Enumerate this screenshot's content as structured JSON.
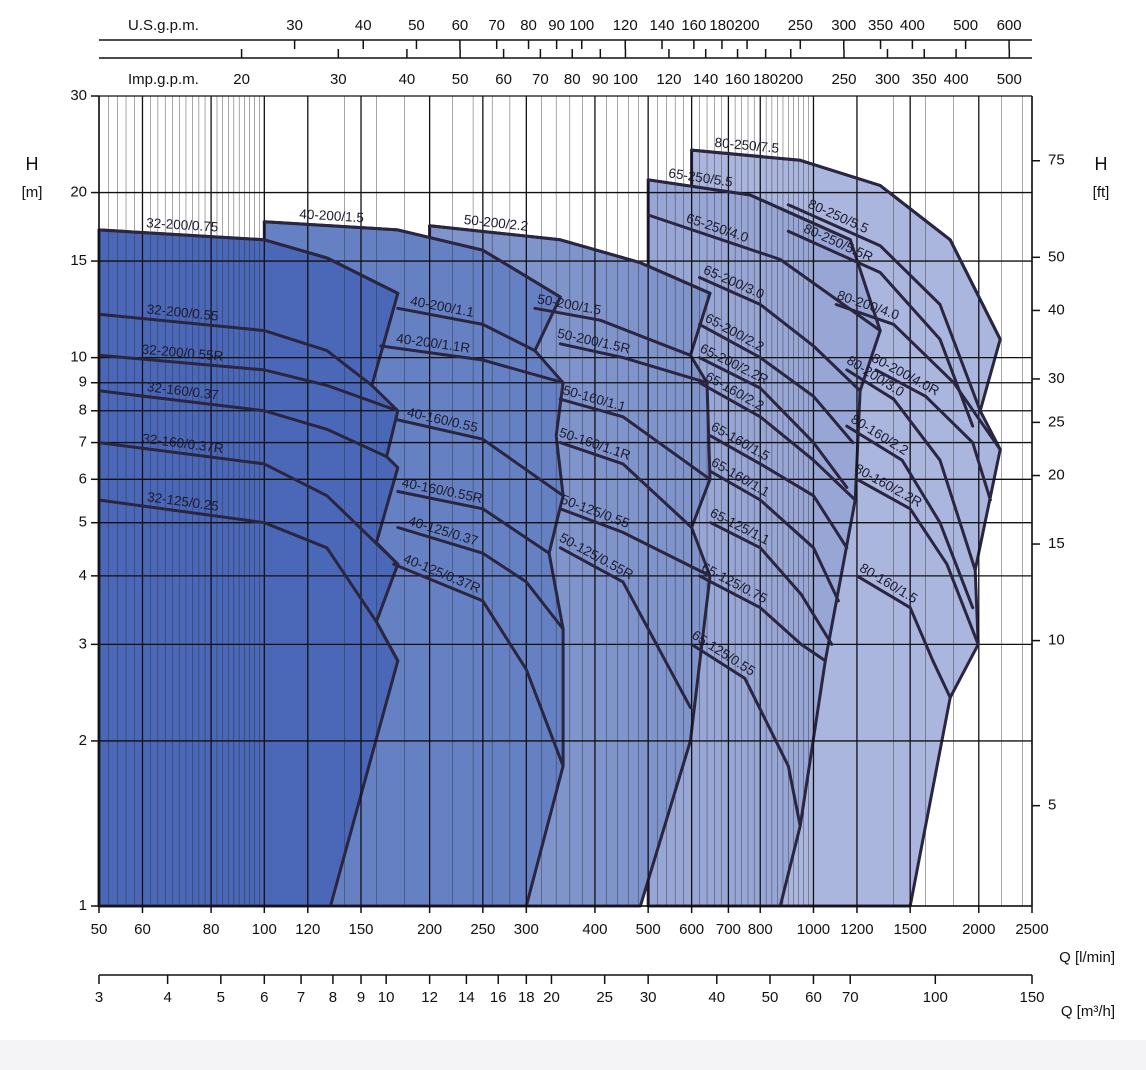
{
  "chart_data": {
    "type": "line",
    "log_x": true,
    "log_y": true,
    "grid": true,
    "minor_grid": true,
    "xlabel": "Q [l/min]",
    "ylabel": {
      "symbol": "H",
      "unit": "[m]"
    },
    "y2label": {
      "symbol": "H",
      "unit": "[ft]"
    },
    "xlim": [
      50,
      2500
    ],
    "xticks": [
      50,
      60,
      80,
      100,
      120,
      150,
      200,
      250,
      300,
      400,
      500,
      600,
      700,
      800,
      1000,
      1200,
      1500,
      2000,
      2500
    ],
    "ylim": [
      1,
      30
    ],
    "yticks": [
      1,
      2,
      3,
      4,
      5,
      6,
      7,
      8,
      9,
      10,
      15,
      20,
      30
    ],
    "y2lim": [
      3.281,
      98.43
    ],
    "y2ticks": [
      5,
      10,
      15,
      20,
      25,
      30,
      40,
      50,
      75
    ],
    "us_gpm": {
      "label": "U.S.g.p.m.",
      "lim": [
        13.21,
        660.5
      ],
      "ticks": [
        30,
        40,
        50,
        60,
        70,
        80,
        90,
        100,
        120,
        140,
        160,
        180,
        200,
        250,
        300,
        350,
        400,
        500,
        600
      ]
    },
    "imp_gpm": {
      "label": "Imp.g.p.m.",
      "lim": [
        11.0,
        549.9
      ],
      "ticks": [
        20,
        30,
        40,
        50,
        60,
        70,
        80,
        90,
        100,
        120,
        140,
        160,
        180,
        200,
        250,
        300,
        350,
        400,
        500
      ]
    },
    "m3h": {
      "label": "Q [m³/h]",
      "lim": [
        3,
        150
      ],
      "ticks": [
        3,
        4,
        5,
        6,
        7,
        8,
        9,
        10,
        12,
        14,
        16,
        18,
        20,
        25,
        30,
        40,
        50,
        60,
        70,
        100,
        150
      ]
    },
    "curve_color": "#2a2540",
    "regions": [
      {
        "color": "#4b68b8",
        "x": [
          50,
          50,
          100,
          130,
          175,
          157,
          175,
          167,
          175,
          160,
          175,
          160,
          175,
          132
        ],
        "values": [
          1,
          17.1,
          16.4,
          15.2,
          13.1,
          8.9,
          8.0,
          6.6,
          6.3,
          4.6,
          4.2,
          3.3,
          2.8,
          1
        ]
      },
      {
        "color": "#6681c3",
        "x": [
          100,
          100,
          175,
          250,
          346,
          311,
          350,
          340,
          350,
          330,
          350,
          350,
          300
        ],
        "values": [
          1,
          17.7,
          17.1,
          15.7,
          12.9,
          10.3,
          9.0,
          7.2,
          5.6,
          4.4,
          3.2,
          1.8,
          1
        ]
      },
      {
        "color": "#8094cc",
        "x": [
          200,
          200,
          346,
          484,
          648,
          597,
          640,
          648,
          600,
          648,
          597,
          484
        ],
        "values": [
          1,
          17.4,
          16.4,
          14.9,
          13.1,
          10.1,
          9.0,
          6.0,
          4.9,
          4.0,
          2.0,
          1
        ]
      },
      {
        "color": "#98a6d5",
        "x": [
          500,
          500,
          767,
          1167,
          1323,
          1216,
          1191,
          1051,
          946,
          870
        ],
        "values": [
          1,
          21.1,
          19.8,
          16.4,
          11.2,
          8.7,
          5.5,
          2.8,
          1.4,
          1
        ]
      },
      {
        "color": "#abb6de",
        "x": [
          600,
          600,
          946,
          1323,
          1774,
          2188,
          2012,
          2188,
          1970,
          1995,
          1774,
          1500
        ],
        "values": [
          1,
          23.9,
          22.9,
          20.6,
          16.4,
          10.8,
          8.0,
          6.8,
          4.1,
          3.0,
          2.4,
          1
        ]
      }
    ],
    "series": [
      {
        "name": "32-200/0.75",
        "x": [
          50,
          100,
          130,
          175
        ],
        "values": [
          17.1,
          16.4,
          15.2,
          13.1
        ]
      },
      {
        "name": "32-200/0.55",
        "x": [
          50,
          100,
          130,
          157
        ],
        "values": [
          12.0,
          11.2,
          10.3,
          8.9
        ]
      },
      {
        "name": "32-200/0.55R",
        "x": [
          50,
          100,
          130,
          175
        ],
        "values": [
          10.1,
          9.5,
          8.9,
          8.0
        ]
      },
      {
        "name": "32-160/0.37",
        "x": [
          50,
          100,
          130,
          167
        ],
        "values": [
          8.7,
          8.0,
          7.4,
          6.6
        ]
      },
      {
        "name": "32-160/0.37R",
        "x": [
          50,
          100,
          130,
          175
        ],
        "values": [
          7.0,
          6.4,
          5.6,
          4.2
        ]
      },
      {
        "name": "32-125/0.25",
        "x": [
          50,
          100,
          130,
          160,
          175
        ],
        "values": [
          5.5,
          5.0,
          4.5,
          3.3,
          2.8
        ]
      },
      {
        "name": "40-200/1.5",
        "x": [
          100,
          175,
          250,
          346
        ],
        "values": [
          17.7,
          17.1,
          15.7,
          12.9
        ]
      },
      {
        "name": "40-200/1.1",
        "x": [
          175,
          250,
          311
        ],
        "values": [
          12.3,
          11.5,
          10.3
        ]
      },
      {
        "name": "40-200/1.1R",
        "x": [
          163,
          250,
          350
        ],
        "values": [
          10.5,
          9.9,
          9.0
        ]
      },
      {
        "name": "40-160/0.55",
        "x": [
          175,
          250,
          350
        ],
        "values": [
          7.7,
          7.1,
          5.6
        ]
      },
      {
        "name": "40-160/0.55R",
        "x": [
          175,
          250,
          330
        ],
        "values": [
          5.7,
          5.3,
          4.4
        ]
      },
      {
        "name": "40-125/0.37",
        "x": [
          175,
          250,
          300,
          350
        ],
        "values": [
          4.9,
          4.4,
          3.9,
          3.2
        ]
      },
      {
        "name": "40-125/0.37R",
        "x": [
          172,
          250,
          300,
          350
        ],
        "values": [
          4.2,
          3.6,
          2.7,
          1.8
        ]
      },
      {
        "name": "50-200/2.2",
        "x": [
          200,
          346,
          484,
          648
        ],
        "values": [
          17.4,
          16.4,
          14.9,
          13.1
        ]
      },
      {
        "name": "50-200/1.5",
        "x": [
          311,
          409,
          597
        ],
        "values": [
          12.3,
          11.7,
          10.1
        ]
      },
      {
        "name": "50-200/1.5R",
        "x": [
          346,
          450,
          640
        ],
        "values": [
          10.6,
          10.0,
          9.0
        ]
      },
      {
        "name": "50-160/1.1",
        "x": [
          346,
          450,
          648
        ],
        "values": [
          8.4,
          7.8,
          6.0
        ]
      },
      {
        "name": "50-160/1.1R",
        "x": [
          346,
          450,
          600
        ],
        "values": [
          7.0,
          6.4,
          4.9
        ]
      },
      {
        "name": "50-125/0.55",
        "x": [
          346,
          450,
          648
        ],
        "values": [
          5.3,
          4.8,
          4.0
        ]
      },
      {
        "name": "50-125/0.55R",
        "x": [
          346,
          450,
          597
        ],
        "values": [
          4.5,
          3.9,
          2.3
        ]
      },
      {
        "name": "65-250/5.5",
        "x": [
          500,
          767,
          1167
        ],
        "values": [
          21.1,
          19.8,
          16.4
        ]
      },
      {
        "name": "65-250/4.0",
        "x": [
          500,
          870,
          1323
        ],
        "values": [
          18.2,
          15.1,
          11.2
        ]
      },
      {
        "name": "65-200/3.0",
        "x": [
          620,
          800,
          1000,
          1216
        ],
        "values": [
          14.0,
          12.5,
          10.5,
          8.7
        ]
      },
      {
        "name": "65-200/2.2",
        "x": [
          620,
          800,
          1000,
          1180
        ],
        "values": [
          11.5,
          10.0,
          8.5,
          7.0
        ]
      },
      {
        "name": "65-200/2.2R",
        "x": [
          620,
          800,
          1000,
          1150
        ],
        "values": [
          10.0,
          8.8,
          7.0,
          5.8
        ]
      },
      {
        "name": "65-160/2.2",
        "x": [
          620,
          800,
          1000,
          1191
        ],
        "values": [
          9.0,
          7.8,
          6.5,
          5.5
        ]
      },
      {
        "name": "65-160/1.5",
        "x": [
          650,
          800,
          1000,
          1150
        ],
        "values": [
          7.2,
          6.4,
          5.6,
          4.5
        ]
      },
      {
        "name": "65-160/1.1",
        "x": [
          650,
          800,
          1000,
          1110
        ],
        "values": [
          6.2,
          5.5,
          4.5,
          3.6
        ]
      },
      {
        "name": "65-125/1.1",
        "x": [
          650,
          800,
          950,
          1080
        ],
        "values": [
          5.0,
          4.5,
          3.7,
          3.0
        ]
      },
      {
        "name": "65-125/0.75",
        "x": [
          620,
          800,
          950,
          1051
        ],
        "values": [
          4.0,
          3.5,
          3.0,
          2.8
        ]
      },
      {
        "name": "65-125/0.55",
        "x": [
          600,
          750,
          900,
          946
        ],
        "values": [
          3.0,
          2.6,
          1.8,
          1.4
        ]
      },
      {
        "name": "80-250/7.5",
        "x": [
          600,
          946,
          1323,
          1774,
          2188
        ],
        "values": [
          23.9,
          22.9,
          20.6,
          16.4,
          10.8
        ]
      },
      {
        "name": "80-250/5.5",
        "x": [
          900,
          1323,
          1700,
          2012
        ],
        "values": [
          19.0,
          16.0,
          12.5,
          8.0
        ]
      },
      {
        "name": "80-250/5.5R",
        "x": [
          900,
          1323,
          1700,
          1950
        ],
        "values": [
          17.0,
          14.3,
          10.8,
          7.5
        ]
      },
      {
        "name": "80-200/4.0",
        "x": [
          1100,
          1400,
          1800,
          2188
        ],
        "values": [
          12.5,
          11.5,
          9.0,
          6.8
        ]
      },
      {
        "name": "80-200/4.0R",
        "x": [
          1300,
          1600,
          1950,
          2100
        ],
        "values": [
          9.5,
          8.5,
          7.0,
          5.5
        ]
      },
      {
        "name": "80-200/3.0",
        "x": [
          1150,
          1400,
          1700,
          1970
        ],
        "values": [
          9.5,
          8.4,
          6.5,
          4.1
        ]
      },
      {
        "name": "80-160/2.2",
        "x": [
          1150,
          1450,
          1700,
          1950
        ],
        "values": [
          7.5,
          6.5,
          5.0,
          3.5
        ]
      },
      {
        "name": "80-160/2.2R",
        "x": [
          1200,
          1500,
          1750,
          1995
        ],
        "values": [
          6.0,
          5.3,
          4.2,
          3.0
        ]
      },
      {
        "name": "80-160/1.5",
        "x": [
          1200,
          1500,
          1650,
          1774
        ],
        "values": [
          4.0,
          3.5,
          2.8,
          2.4
        ]
      }
    ]
  }
}
